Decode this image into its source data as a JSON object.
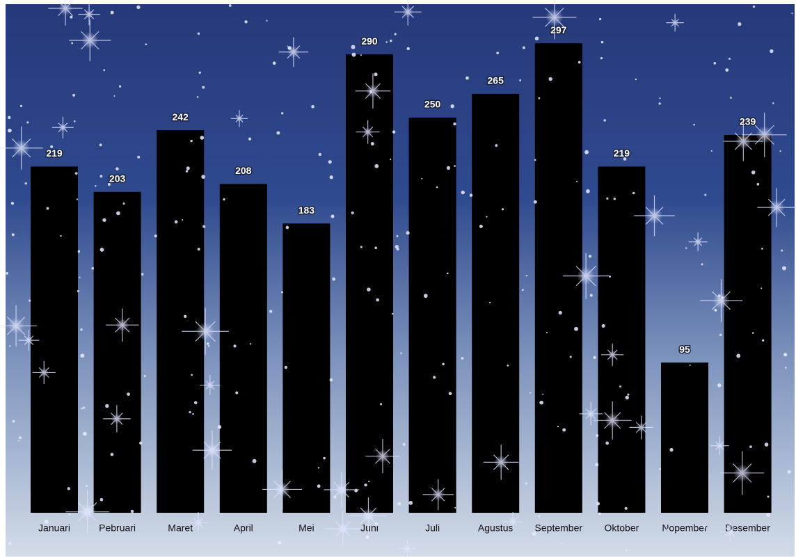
{
  "chart_data": {
    "type": "bar",
    "categories": [
      "Januari",
      "Pebruari",
      "Maret",
      "April",
      "Mei",
      "Juni",
      "Juli",
      "Agustus",
      "September",
      "Oktober",
      "Nopember",
      "Desember"
    ],
    "values": [
      219,
      203,
      242,
      208,
      183,
      290,
      250,
      265,
      297,
      219,
      95,
      239
    ],
    "color": "#000000"
  }
}
